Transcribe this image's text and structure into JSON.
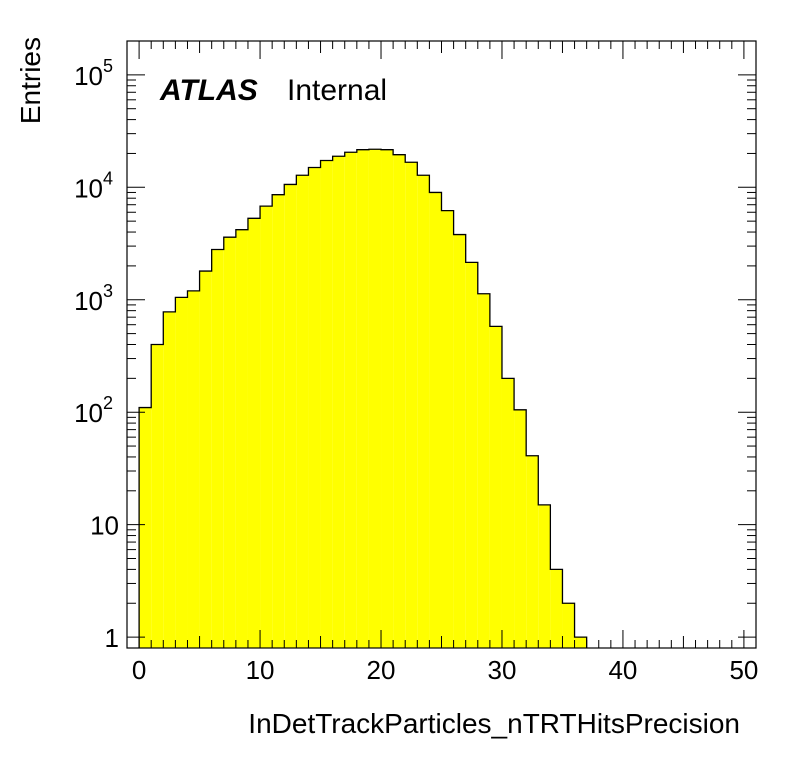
{
  "chart_data": {
    "type": "bar",
    "style": "histogram-step-filled",
    "xlabel": "InDetTrackParticles_nTRTHitsPrecision",
    "ylabel": "Entries",
    "xlim": [
      -1,
      51
    ],
    "ylim": [
      0.8,
      200000
    ],
    "yscale": "log",
    "grid": false,
    "fill_color": "#ffff00",
    "line_color": "#000000",
    "x_ticks": [
      0,
      10,
      20,
      30,
      40,
      50
    ],
    "x_tick_labels": [
      "0",
      "10",
      "20",
      "30",
      "40",
      "50"
    ],
    "y_ticks": [
      1,
      10,
      100,
      1000,
      10000,
      100000
    ],
    "y_tick_labels": [
      {
        "base": "1",
        "exp": ""
      },
      {
        "base": "10",
        "exp": ""
      },
      {
        "base": "10",
        "exp": "2"
      },
      {
        "base": "10",
        "exp": "3"
      },
      {
        "base": "10",
        "exp": "4"
      },
      {
        "base": "10",
        "exp": "5"
      }
    ],
    "bin_width": 1,
    "bins": [
      0,
      1,
      2,
      3,
      4,
      5,
      6,
      7,
      8,
      9,
      10,
      11,
      12,
      13,
      14,
      15,
      16,
      17,
      18,
      19,
      20,
      21,
      22,
      23,
      24,
      25,
      26,
      27,
      28,
      29,
      30,
      31,
      32,
      33,
      34,
      35,
      36,
      37,
      38,
      39,
      40,
      41,
      42,
      43,
      44,
      45,
      46,
      47,
      48,
      49,
      50
    ],
    "values": [
      110,
      400,
      780,
      1050,
      1200,
      1800,
      2800,
      3600,
      4200,
      5300,
      6800,
      8600,
      10600,
      12800,
      15000,
      17300,
      18900,
      20500,
      21600,
      21800,
      21600,
      19500,
      16700,
      12800,
      9000,
      6200,
      3800,
      2150,
      1130,
      580,
      200,
      105,
      41,
      15,
      4,
      2,
      1,
      0,
      0,
      0,
      0,
      0,
      0,
      0,
      0,
      0,
      0,
      0,
      0,
      0,
      0
    ],
    "annotations": {
      "experiment": "ATLAS",
      "status": "Internal"
    }
  }
}
